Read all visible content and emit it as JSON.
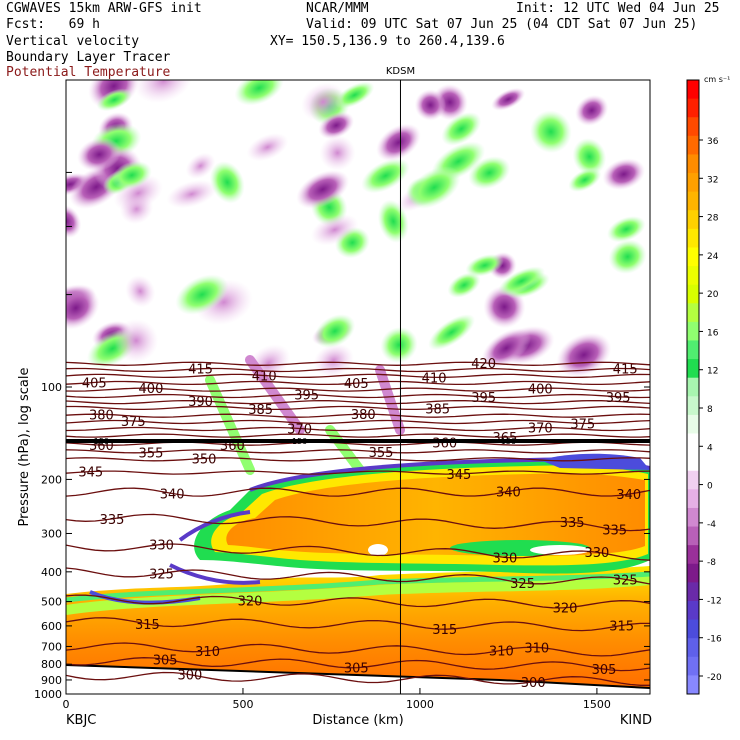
{
  "header": {
    "line1_left": "CGWAVES 15km ARW-GFS init",
    "line1_center": "NCAR/MMM",
    "line1_right": "Init: 12 UTC Wed 04 Jun 25",
    "fcst": "Fcst:   69 h",
    "valid": "Valid: 09 UTC Sat 07 Jun 25 (04 CDT Sat 07 Jun 25)",
    "field1": "Vertical velocity",
    "xy": "XY= 150.5,136.9 to 260.4,139.6",
    "field2": "Boundary Layer Tracer",
    "field3": "Potential Temperature"
  },
  "chart_data": {
    "type": "heatmap",
    "title": "",
    "xlabel": "Distance (km)",
    "ylabel": "Pressure (hPa), log scale",
    "x_ticks": [
      0,
      500,
      1000,
      1500
    ],
    "xlim": [
      0,
      1650
    ],
    "y_ticks": [
      100,
      200,
      300,
      400,
      500,
      600,
      700,
      800,
      900,
      1000
    ],
    "ylim": [
      1000,
      10
    ],
    "y_scale": "log",
    "start_label": "KBJC",
    "end_label": "KIND",
    "marker_label": "KDSM",
    "marker_x": 945,
    "colorbar": {
      "unit": "cm s⁻¹",
      "tick_labels": [
        "36",
        "32",
        "28",
        "24",
        "20",
        "16",
        "12",
        "8",
        "4",
        "0",
        "-4",
        "-8",
        "-12",
        "-16",
        "-20"
      ],
      "colors": [
        "#ff0000",
        "#ff2000",
        "#ff4a00",
        "#ff6a00",
        "#ff8c00",
        "#ffa000",
        "#ffb400",
        "#ffd000",
        "#ffe800",
        "#ffff00",
        "#ecff00",
        "#d8ff00",
        "#b4ff40",
        "#90ff70",
        "#50ee70",
        "#20dd50",
        "#a8f5b0",
        "#c8f8cc",
        "#e8fce8",
        "#ffffff",
        "#ffffff",
        "#f0d0f0",
        "#e6b0e6",
        "#d088d0",
        "#b860b8",
        "#9a309a",
        "#7d1a8a",
        "#6a2aa8",
        "#5a3ac8",
        "#4c4cdc",
        "#5f60ea",
        "#7070f4",
        "#8888ff"
      ]
    },
    "theta_contours": [
      {
        "value": 300,
        "p": 870,
        "labels_x": [
          350,
          1320
        ]
      },
      {
        "value": 305,
        "p": 780,
        "labels_x": [
          280,
          820,
          1520
        ]
      },
      {
        "value": 310,
        "p": 700,
        "labels_x": [
          400,
          1230,
          1330
        ]
      },
      {
        "value": 315,
        "p": 580,
        "labels_x": [
          230,
          1070,
          1570
        ]
      },
      {
        "value": 320,
        "p": 490,
        "labels_x": [
          520,
          1410
        ]
      },
      {
        "value": 325,
        "p": 400,
        "labels_x": [
          270,
          1290,
          1580
        ]
      },
      {
        "value": 330,
        "p": 330,
        "labels_x": [
          270,
          1240,
          1500
        ]
      },
      {
        "value": 335,
        "p": 265,
        "labels_x": [
          130,
          1430,
          1550
        ]
      },
      {
        "value": 340,
        "p": 220,
        "labels_x": [
          300,
          1250,
          1590
        ]
      },
      {
        "value": 345,
        "p": 190,
        "labels_x": [
          70,
          1110
        ]
      },
      {
        "value": 350,
        "p": 172,
        "labels_x": [
          390
        ]
      },
      {
        "value": 355,
        "p": 162,
        "labels_x": [
          240,
          890
        ]
      },
      {
        "value": 360,
        "p": 153,
        "labels_x": [
          100,
          470,
          1070
        ]
      },
      {
        "value": 365,
        "p": 144,
        "labels_x": [
          1240
        ]
      },
      {
        "value": 370,
        "p": 137,
        "labels_x": [
          660,
          1340
        ]
      },
      {
        "value": 375,
        "p": 130,
        "labels_x": [
          190,
          1460
        ]
      },
      {
        "value": 380,
        "p": 124,
        "labels_x": [
          100,
          840
        ]
      },
      {
        "value": 385,
        "p": 117,
        "labels_x": [
          550,
          1050
        ]
      },
      {
        "value": 390,
        "p": 112,
        "labels_x": [
          380
        ]
      },
      {
        "value": 395,
        "p": 107,
        "labels_x": [
          680,
          1180,
          1560
        ]
      },
      {
        "value": 400,
        "p": 102,
        "labels_x": [
          240,
          1340
        ]
      },
      {
        "value": 405,
        "p": 97,
        "labels_x": [
          80,
          820
        ]
      },
      {
        "value": 410,
        "p": 92,
        "labels_x": [
          560,
          1040
        ]
      },
      {
        "value": 415,
        "p": 88,
        "labels_x": [
          380,
          1580
        ]
      },
      {
        "value": 420,
        "p": 84,
        "labels_x": [
          1180
        ]
      }
    ],
    "bl_tracer_marker": {
      "label": "150",
      "p": 150,
      "labels_x": [
        100,
        660,
        1250
      ]
    }
  }
}
